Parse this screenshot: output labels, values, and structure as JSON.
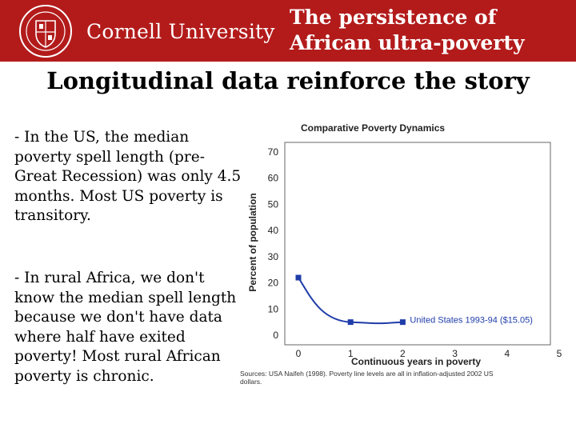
{
  "header": {
    "university_name": "Cornell University",
    "slide_title_line1": "The persistence of",
    "slide_title_line2": "African ultra-poverty",
    "logo_icon": "cornell-seal-icon",
    "background_color": "#b31b1b"
  },
  "slide": {
    "heading": "Longitudinal data reinforce the story",
    "bullet1": "- In the US, the median poverty spell length (pre-Great Recession) was only 4.5 months.  Most US poverty is transitory.",
    "bullet2": "- In rural Africa, we don't know the median spell length because we don't have data where half have exited poverty!   Most rural African poverty is chronic."
  },
  "chart_data": {
    "type": "line",
    "title": "Comparative Poverty Dynamics",
    "xlabel": "Continuous years in poverty",
    "ylabel": "Percent of population",
    "xlim": [
      0,
      5
    ],
    "ylim": [
      0,
      70
    ],
    "x_ticks": [
      0,
      1,
      2,
      3,
      4,
      5
    ],
    "y_ticks": [
      0,
      10,
      20,
      30,
      40,
      50,
      60,
      70
    ],
    "grid": false,
    "series": [
      {
        "name": "United States 1993-94 ($15.05)",
        "x": [
          0,
          1,
          2
        ],
        "y": [
          22,
          5,
          5
        ],
        "color": "#1f3ca8"
      }
    ],
    "source_note": "Sources:  USA  Naifeh (1998). Poverty line levels are all in inflation-adjusted 2002 US dollars."
  }
}
